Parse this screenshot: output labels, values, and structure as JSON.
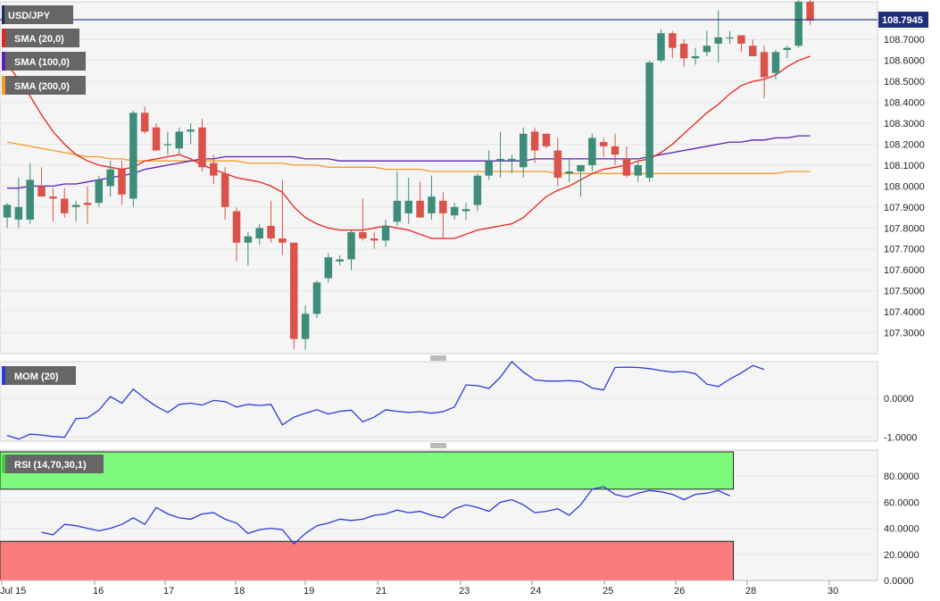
{
  "symbol": "USD/JPY",
  "current_price_label": "108.7945",
  "current_price": 108.7945,
  "colors": {
    "up": "#3e8c79",
    "down": "#d9534a",
    "sma20": "#e8221c",
    "sma100": "#5a1fb4",
    "sma200": "#f39c26",
    "mom": "#2b3bd6",
    "rsi": "#2b3bd6",
    "rsi_overbought": "#7dfa7d",
    "rsi_oversold": "#fa7b7b",
    "price_line": "#1f2f7a",
    "legend_bg": "#666666"
  },
  "legend": {
    "sma20": "SMA (20,0)",
    "sma100": "SMA (100,0)",
    "sma200": "SMA (200,0)",
    "mom": "MOM (20)",
    "rsi": "RSI (14,70,30,1)"
  },
  "x_axis_labels": [
    "Jul 15",
    "16",
    "17",
    "18",
    "19",
    "21",
    "23",
    "24",
    "25",
    "26",
    "28",
    "30"
  ],
  "chart_data": [
    {
      "type": "candlestick",
      "title": "USD/JPY",
      "ylim": [
        107.2,
        108.88
      ],
      "y_ticks": [
        "108.7000",
        "108.6000",
        "108.5000",
        "108.4000",
        "108.3000",
        "108.2000",
        "108.1000",
        "108.0000",
        "107.9000",
        "107.8000",
        "107.7000",
        "107.6000",
        "107.5000",
        "107.4000",
        "107.3000"
      ],
      "y_tick_values": [
        108.7,
        108.6,
        108.5,
        108.4,
        108.3,
        108.2,
        108.1,
        108.0,
        107.9,
        107.8,
        107.7,
        107.6,
        107.5,
        107.4,
        107.3
      ],
      "candles": [
        {
          "o": 107.85,
          "h": 107.92,
          "l": 107.8,
          "c": 107.91
        },
        {
          "o": 107.84,
          "h": 108.04,
          "l": 107.8,
          "c": 107.9
        },
        {
          "o": 107.84,
          "h": 108.11,
          "l": 107.82,
          "c": 108.03
        },
        {
          "o": 108.0,
          "h": 108.09,
          "l": 107.96,
          "c": 107.95
        },
        {
          "o": 107.95,
          "h": 107.99,
          "l": 107.83,
          "c": 107.94
        },
        {
          "o": 107.94,
          "h": 107.99,
          "l": 107.85,
          "c": 107.87
        },
        {
          "o": 107.9,
          "h": 107.93,
          "l": 107.83,
          "c": 107.91
        },
        {
          "o": 107.92,
          "h": 108.0,
          "l": 107.82,
          "c": 107.91
        },
        {
          "o": 107.92,
          "h": 108.05,
          "l": 107.9,
          "c": 108.03
        },
        {
          "o": 108.0,
          "h": 108.12,
          "l": 107.95,
          "c": 108.08
        },
        {
          "o": 108.08,
          "h": 108.12,
          "l": 107.91,
          "c": 107.96
        },
        {
          "o": 107.94,
          "h": 108.36,
          "l": 107.9,
          "c": 108.35
        },
        {
          "o": 108.35,
          "h": 108.38,
          "l": 108.25,
          "c": 108.26
        },
        {
          "o": 108.28,
          "h": 108.3,
          "l": 108.17,
          "c": 108.17
        },
        {
          "o": 108.2,
          "h": 108.26,
          "l": 108.15,
          "c": 108.2
        },
        {
          "o": 108.18,
          "h": 108.28,
          "l": 108.15,
          "c": 108.26
        },
        {
          "o": 108.26,
          "h": 108.3,
          "l": 108.2,
          "c": 108.27
        },
        {
          "o": 108.28,
          "h": 108.32,
          "l": 108.07,
          "c": 108.09
        },
        {
          "o": 108.11,
          "h": 108.15,
          "l": 108.01,
          "c": 108.05
        },
        {
          "o": 108.06,
          "h": 108.09,
          "l": 107.84,
          "c": 107.9
        },
        {
          "o": 107.88,
          "h": 107.9,
          "l": 107.64,
          "c": 107.73
        },
        {
          "o": 107.73,
          "h": 107.78,
          "l": 107.62,
          "c": 107.76
        },
        {
          "o": 107.75,
          "h": 107.82,
          "l": 107.72,
          "c": 107.8
        },
        {
          "o": 107.81,
          "h": 107.93,
          "l": 107.73,
          "c": 107.75
        },
        {
          "o": 107.75,
          "h": 108.03,
          "l": 107.67,
          "c": 107.73
        },
        {
          "o": 107.73,
          "h": 107.73,
          "l": 107.22,
          "c": 107.27
        },
        {
          "o": 107.27,
          "h": 107.43,
          "l": 107.22,
          "c": 107.39
        },
        {
          "o": 107.39,
          "h": 107.55,
          "l": 107.37,
          "c": 107.54
        },
        {
          "o": 107.56,
          "h": 107.68,
          "l": 107.54,
          "c": 107.66
        },
        {
          "o": 107.64,
          "h": 107.67,
          "l": 107.62,
          "c": 107.65
        },
        {
          "o": 107.65,
          "h": 107.79,
          "l": 107.6,
          "c": 107.78
        },
        {
          "o": 107.78,
          "h": 107.94,
          "l": 107.74,
          "c": 107.75
        },
        {
          "o": 107.75,
          "h": 107.78,
          "l": 107.7,
          "c": 107.74
        },
        {
          "o": 107.74,
          "h": 107.84,
          "l": 107.71,
          "c": 107.81
        },
        {
          "o": 107.83,
          "h": 108.07,
          "l": 107.81,
          "c": 107.93
        },
        {
          "o": 107.87,
          "h": 108.04,
          "l": 107.82,
          "c": 107.93
        },
        {
          "o": 107.93,
          "h": 108.02,
          "l": 107.86,
          "c": 107.85
        },
        {
          "o": 107.87,
          "h": 108.05,
          "l": 107.84,
          "c": 107.95
        },
        {
          "o": 107.93,
          "h": 107.97,
          "l": 107.75,
          "c": 107.87
        },
        {
          "o": 107.86,
          "h": 107.92,
          "l": 107.84,
          "c": 107.9
        },
        {
          "o": 107.88,
          "h": 107.92,
          "l": 107.84,
          "c": 107.89
        },
        {
          "o": 107.91,
          "h": 108.06,
          "l": 107.88,
          "c": 108.05
        },
        {
          "o": 108.05,
          "h": 108.17,
          "l": 108.03,
          "c": 108.12
        },
        {
          "o": 108.12,
          "h": 108.26,
          "l": 108.04,
          "c": 108.13
        },
        {
          "o": 108.12,
          "h": 108.15,
          "l": 108.06,
          "c": 108.13
        },
        {
          "o": 108.09,
          "h": 108.28,
          "l": 108.04,
          "c": 108.25
        },
        {
          "o": 108.26,
          "h": 108.28,
          "l": 108.11,
          "c": 108.17
        },
        {
          "o": 108.25,
          "h": 108.25,
          "l": 108.18,
          "c": 108.19
        },
        {
          "o": 108.17,
          "h": 108.23,
          "l": 108.0,
          "c": 108.04
        },
        {
          "o": 108.06,
          "h": 108.13,
          "l": 108.02,
          "c": 108.07
        },
        {
          "o": 108.07,
          "h": 108.1,
          "l": 107.95,
          "c": 108.1
        },
        {
          "o": 108.1,
          "h": 108.25,
          "l": 108.07,
          "c": 108.23
        },
        {
          "o": 108.21,
          "h": 108.23,
          "l": 108.14,
          "c": 108.19
        },
        {
          "o": 108.19,
          "h": 108.25,
          "l": 108.1,
          "c": 108.15
        },
        {
          "o": 108.13,
          "h": 108.19,
          "l": 108.04,
          "c": 108.05
        },
        {
          "o": 108.05,
          "h": 108.12,
          "l": 108.02,
          "c": 108.1
        },
        {
          "o": 108.04,
          "h": 108.6,
          "l": 108.02,
          "c": 108.59
        },
        {
          "o": 108.6,
          "h": 108.75,
          "l": 108.59,
          "c": 108.73
        },
        {
          "o": 108.73,
          "h": 108.74,
          "l": 108.61,
          "c": 108.66
        },
        {
          "o": 108.68,
          "h": 108.7,
          "l": 108.57,
          "c": 108.61
        },
        {
          "o": 108.61,
          "h": 108.66,
          "l": 108.58,
          "c": 108.62
        },
        {
          "o": 108.64,
          "h": 108.74,
          "l": 108.62,
          "c": 108.67
        },
        {
          "o": 108.68,
          "h": 108.84,
          "l": 108.59,
          "c": 108.71
        },
        {
          "o": 108.71,
          "h": 108.74,
          "l": 108.68,
          "c": 108.71
        },
        {
          "o": 108.72,
          "h": 108.72,
          "l": 108.64,
          "c": 108.68
        },
        {
          "o": 108.67,
          "h": 108.7,
          "l": 108.62,
          "c": 108.62
        },
        {
          "o": 108.64,
          "h": 108.67,
          "l": 108.42,
          "c": 108.52
        },
        {
          "o": 108.54,
          "h": 108.65,
          "l": 108.51,
          "c": 108.64
        },
        {
          "o": 108.65,
          "h": 108.67,
          "l": 108.61,
          "c": 108.66
        },
        {
          "o": 108.67,
          "h": 108.92,
          "l": 108.66,
          "c": 108.88
        },
        {
          "o": 108.88,
          "h": 108.89,
          "l": 108.77,
          "c": 108.79
        }
      ],
      "sma20": [
        108.58,
        108.51,
        108.43,
        108.34,
        108.26,
        108.2,
        108.15,
        108.12,
        108.1,
        108.09,
        108.08,
        108.09,
        108.12,
        108.13,
        108.14,
        108.15,
        108.13,
        108.1,
        108.08,
        108.06,
        108.04,
        108.03,
        108.02,
        108.0,
        107.97,
        107.9,
        107.85,
        107.82,
        107.8,
        107.79,
        107.79,
        107.79,
        107.8,
        107.81,
        107.8,
        107.79,
        107.77,
        107.75,
        107.75,
        107.75,
        107.77,
        107.79,
        107.8,
        107.81,
        107.82,
        107.85,
        107.9,
        107.95,
        107.98,
        108.0,
        108.03,
        108.06,
        108.08,
        108.09,
        108.1,
        108.12,
        108.13,
        108.16,
        108.2,
        108.25,
        108.3,
        108.35,
        108.39,
        108.44,
        108.48,
        108.5,
        108.51,
        108.53,
        108.57,
        108.6,
        108.62
      ],
      "sma100": [
        107.99,
        107.99,
        108.0,
        108.0,
        108.0,
        108.01,
        108.01,
        108.02,
        108.03,
        108.04,
        108.05,
        108.06,
        108.08,
        108.09,
        108.1,
        108.11,
        108.12,
        108.13,
        108.13,
        108.14,
        108.14,
        108.14,
        108.14,
        108.14,
        108.14,
        108.14,
        108.13,
        108.13,
        108.13,
        108.12,
        108.12,
        108.12,
        108.12,
        108.12,
        108.12,
        108.12,
        108.12,
        108.12,
        108.12,
        108.12,
        108.12,
        108.12,
        108.12,
        108.12,
        108.12,
        108.12,
        108.13,
        108.13,
        108.13,
        108.13,
        108.13,
        108.13,
        108.13,
        108.13,
        108.13,
        108.13,
        108.14,
        108.15,
        108.16,
        108.17,
        108.18,
        108.19,
        108.2,
        108.21,
        108.21,
        108.22,
        108.22,
        108.23,
        108.23,
        108.24,
        108.24
      ],
      "sma200": [
        108.21,
        108.2,
        108.19,
        108.18,
        108.17,
        108.16,
        108.15,
        108.14,
        108.14,
        108.13,
        108.13,
        108.12,
        108.12,
        108.12,
        108.12,
        108.12,
        108.12,
        108.12,
        108.12,
        108.12,
        108.12,
        108.11,
        108.11,
        108.11,
        108.11,
        108.1,
        108.1,
        108.1,
        108.09,
        108.09,
        108.09,
        108.09,
        108.09,
        108.08,
        108.08,
        108.08,
        108.08,
        108.07,
        108.07,
        108.07,
        108.07,
        108.07,
        108.07,
        108.07,
        108.07,
        108.07,
        108.07,
        108.07,
        108.06,
        108.06,
        108.06,
        108.06,
        108.06,
        108.06,
        108.06,
        108.06,
        108.06,
        108.06,
        108.06,
        108.06,
        108.06,
        108.06,
        108.06,
        108.06,
        108.06,
        108.06,
        108.06,
        108.06,
        108.07,
        108.07,
        108.07
      ]
    },
    {
      "type": "line",
      "title": "MOM (20)",
      "ylim": [
        -1.1,
        0.95
      ],
      "y_ticks": [
        "0.0000",
        "-1.0000"
      ],
      "y_tick_values": [
        0.0,
        -1.0
      ],
      "values": [
        -0.95,
        -1.05,
        -0.92,
        -0.94,
        -0.98,
        -1.0,
        -0.52,
        -0.5,
        -0.3,
        0.05,
        -0.12,
        0.24,
        0.0,
        -0.2,
        -0.36,
        -0.15,
        -0.12,
        -0.17,
        -0.05,
        -0.08,
        -0.22,
        -0.15,
        -0.18,
        -0.15,
        -0.68,
        -0.48,
        -0.38,
        -0.29,
        -0.4,
        -0.33,
        -0.3,
        -0.6,
        -0.48,
        -0.29,
        -0.33,
        -0.36,
        -0.34,
        -0.38,
        -0.34,
        -0.22,
        0.35,
        0.33,
        0.26,
        0.55,
        0.95,
        0.68,
        0.48,
        0.45,
        0.45,
        0.46,
        0.44,
        0.27,
        0.22,
        0.8,
        0.81,
        0.8,
        0.77,
        0.72,
        0.68,
        0.7,
        0.64,
        0.37,
        0.31,
        0.5,
        0.66,
        0.85,
        0.75
      ]
    },
    {
      "type": "line",
      "title": "RSI (14,70,30,1)",
      "ylim": [
        0,
        100
      ],
      "overbought": 70,
      "oversold": 30,
      "y_ticks": [
        "80.0000",
        "60.0000",
        "40.0000",
        "20.0000",
        "0.0000"
      ],
      "y_tick_values": [
        80,
        60,
        40,
        20,
        0
      ],
      "values": [
        37,
        35,
        43,
        42,
        40,
        38,
        40,
        43,
        48,
        43,
        56,
        51,
        48,
        47,
        51,
        52,
        47,
        44,
        36,
        39,
        40,
        39,
        28,
        36,
        42,
        44,
        47,
        46,
        47,
        50,
        51,
        54,
        52,
        53,
        50,
        48,
        55,
        58,
        56,
        53,
        60,
        62,
        58,
        52,
        53,
        55,
        50,
        58,
        70,
        72,
        66,
        64,
        67,
        69,
        68,
        66,
        62,
        66,
        67,
        69,
        65
      ],
      "values_x_start": 3
    }
  ]
}
